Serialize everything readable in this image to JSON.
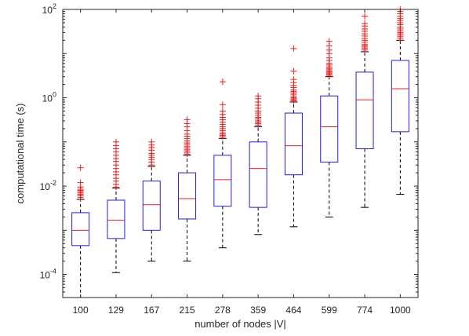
{
  "chart_data": {
    "type": "boxplot",
    "xlabel": "number of nodes |V|",
    "ylabel": "computational time (s)",
    "yscale": "log",
    "ylim": [
      3e-05,
      100
    ],
    "yticks": [
      {
        "value": 0.0001,
        "base": "10",
        "exp": "-4"
      },
      {
        "value": 0.01,
        "base": "10",
        "exp": "-2"
      },
      {
        "value": 1,
        "base": "10",
        "exp": "0"
      },
      {
        "value": 100,
        "base": "10",
        "exp": "2"
      }
    ],
    "categories": [
      "100",
      "129",
      "167",
      "215",
      "278",
      "359",
      "464",
      "599",
      "774",
      "1000"
    ],
    "boxes": [
      {
        "whisker_low": 3e-05,
        "q1": 0.00045,
        "median": 0.001,
        "q3": 0.0025,
        "whisker_high": 0.005,
        "outliers": [
          0.0055,
          0.006,
          0.0065,
          0.007,
          0.0075,
          0.008,
          0.0085,
          0.0095,
          0.012,
          0.026
        ]
      },
      {
        "whisker_low": 0.00011,
        "q1": 0.00065,
        "median": 0.0017,
        "q3": 0.0048,
        "whisker_high": 0.009,
        "outliers": [
          0.0095,
          0.011,
          0.013,
          0.015,
          0.018,
          0.021,
          0.025,
          0.03,
          0.036,
          0.042,
          0.05,
          0.06,
          0.07,
          0.082,
          0.1
        ]
      },
      {
        "whisker_low": 0.0002,
        "q1": 0.001,
        "median": 0.0038,
        "q3": 0.013,
        "whisker_high": 0.028,
        "outliers": [
          0.03,
          0.035,
          0.04,
          0.045,
          0.05,
          0.055,
          0.065,
          0.075,
          0.085,
          0.1
        ]
      },
      {
        "whisker_low": 0.0002,
        "q1": 0.0018,
        "median": 0.0052,
        "q3": 0.02,
        "whisker_high": 0.05,
        "outliers": [
          0.053,
          0.058,
          0.063,
          0.068,
          0.074,
          0.08,
          0.088,
          0.095,
          0.105,
          0.12,
          0.135,
          0.15,
          0.18,
          0.22,
          0.26,
          0.32
        ]
      },
      {
        "whisker_low": 0.0004,
        "q1": 0.0035,
        "median": 0.014,
        "q3": 0.05,
        "whisker_high": 0.12,
        "outliers": [
          0.13,
          0.14,
          0.15,
          0.16,
          0.18,
          0.2,
          0.22,
          0.25,
          0.28,
          0.32,
          0.36,
          0.42,
          0.5,
          0.7,
          2.3
        ]
      },
      {
        "whisker_low": 0.0008,
        "q1": 0.0033,
        "median": 0.025,
        "q3": 0.1,
        "whisker_high": 0.22,
        "outliers": [
          0.24,
          0.26,
          0.28,
          0.3,
          0.33,
          0.36,
          0.4,
          0.45,
          0.5,
          0.58,
          0.68,
          0.8,
          0.95,
          1.1
        ]
      },
      {
        "whisker_low": 0.0012,
        "q1": 0.018,
        "median": 0.082,
        "q3": 0.45,
        "whisker_high": 0.8,
        "outliers": [
          0.85,
          0.9,
          0.95,
          1.0,
          1.1,
          1.2,
          1.3,
          1.4,
          1.5,
          1.7,
          1.9,
          2.2,
          2.6,
          4.0,
          13
        ]
      },
      {
        "whisker_low": 0.002,
        "q1": 0.035,
        "median": 0.22,
        "q3": 1.1,
        "whisker_high": 3.0,
        "outliers": [
          3.2,
          3.4,
          3.6,
          3.8,
          4.0,
          4.3,
          4.6,
          5.0,
          5.5,
          6.0,
          7.0,
          8.0,
          10,
          12,
          15,
          19
        ]
      },
      {
        "whisker_low": 0.0033,
        "q1": 0.07,
        "median": 0.9,
        "q3": 3.8,
        "whisker_high": 11,
        "outliers": [
          12,
          13,
          14,
          15,
          16,
          18,
          20,
          22,
          25,
          28,
          32,
          36,
          42,
          48,
          70
        ]
      },
      {
        "whisker_low": 0.0065,
        "q1": 0.17,
        "median": 1.6,
        "q3": 7.0,
        "whisker_high": 20,
        "outliers": [
          22,
          24,
          26,
          28,
          30,
          33,
          36,
          40,
          45,
          50,
          56,
          62,
          70,
          80,
          90,
          100
        ]
      }
    ],
    "colors": {
      "box": "#1f1fe6",
      "median": "#e61f1f",
      "outlier": "#e61f1f",
      "whisker": "#000000",
      "axes": "#262626"
    },
    "grid": false
  }
}
